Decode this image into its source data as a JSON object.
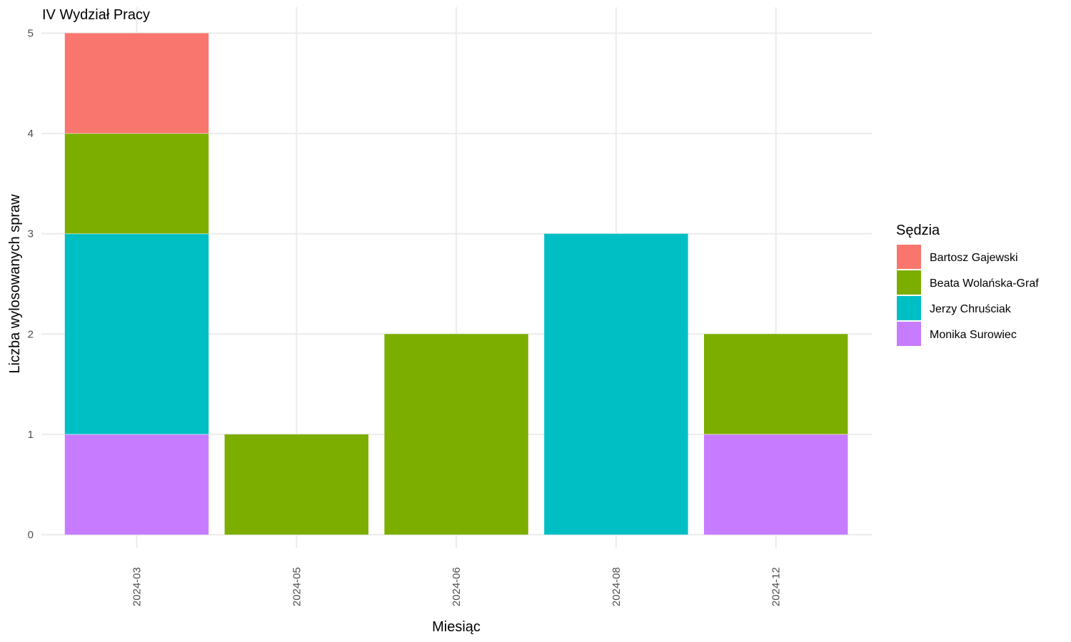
{
  "chart_data": {
    "type": "bar",
    "stacked": true,
    "title": "IV Wydział Pracy",
    "xlabel": "Miesiąc",
    "ylabel": "Liczba wylosowanych spraw",
    "categories": [
      "2024-03",
      "2024-05",
      "2024-06",
      "2024-08",
      "2024-12"
    ],
    "ylim": [
      0,
      5
    ],
    "yticks": [
      "0",
      "1",
      "2",
      "3",
      "4",
      "5"
    ],
    "grid": true,
    "legend": {
      "title": "Sędzia",
      "position": "right"
    },
    "series": [
      {
        "name": "Bartosz Gajewski",
        "color": "#F8766D",
        "values": [
          1,
          0,
          0,
          0,
          0
        ]
      },
      {
        "name": "Beata Wolańska-Graf",
        "color": "#7CAE00",
        "values": [
          1,
          1,
          2,
          0,
          1
        ]
      },
      {
        "name": "Jerzy Chruściak",
        "color": "#00BFC4",
        "values": [
          2,
          0,
          0,
          3,
          0
        ]
      },
      {
        "name": "Monika Surowiec",
        "color": "#C77CFF",
        "values": [
          1,
          0,
          0,
          0,
          1
        ]
      }
    ]
  }
}
